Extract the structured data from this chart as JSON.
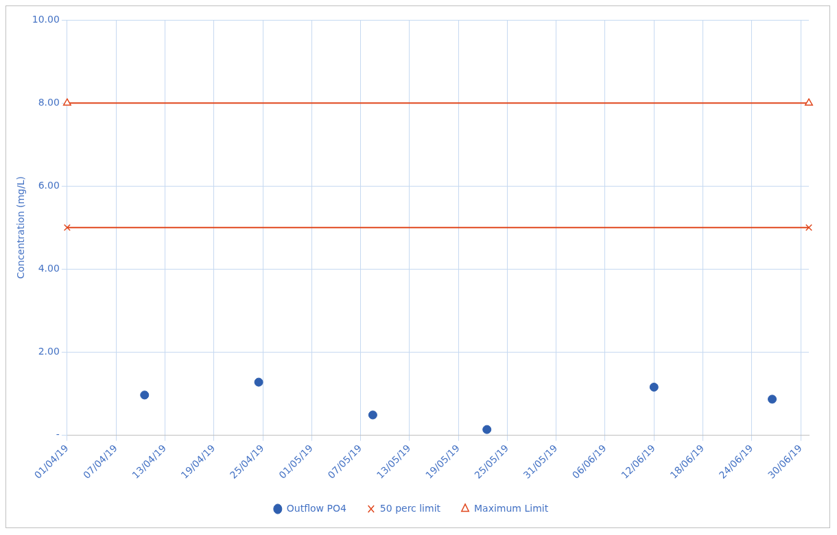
{
  "chart_data": {
    "type": "scatter",
    "ylabel": "Concentration (mg/L)",
    "xlim": [
      "--04-01",
      "--07-01"
    ],
    "xticks": [
      {
        "value": "--04-01",
        "label": "01/04/19"
      },
      {
        "value": "--04-07",
        "label": "07/04/19"
      },
      {
        "value": "--04-13",
        "label": "13/04/19"
      },
      {
        "value": "--04-19",
        "label": "19/04/19"
      },
      {
        "value": "--04-25",
        "label": "25/04/19"
      },
      {
        "value": "--05-01",
        "label": "01/05/19"
      },
      {
        "value": "--05-07",
        "label": "07/05/19"
      },
      {
        "value": "--05-13",
        "label": "13/05/19"
      },
      {
        "value": "--05-19",
        "label": "19/05/19"
      },
      {
        "value": "--05-25",
        "label": "25/05/19"
      },
      {
        "value": "--05-31",
        "label": "31/05/19"
      },
      {
        "value": "--06-06",
        "label": "06/06/19"
      },
      {
        "value": "--06-12",
        "label": "12/06/19"
      },
      {
        "value": "--06-18",
        "label": "18/06/19"
      },
      {
        "value": "--06-24",
        "label": "24/06/19"
      },
      {
        "value": "--06-30",
        "label": "30/06/19"
      }
    ],
    "ylim": [
      0,
      10
    ],
    "yticks": [
      {
        "value": 0,
        "label": "-"
      },
      {
        "value": 2,
        "label": "2.00"
      },
      {
        "value": 4,
        "label": "4.00"
      },
      {
        "value": 6,
        "label": "6.00"
      },
      {
        "value": 8,
        "label": "8.00"
      },
      {
        "value": 10,
        "label": "10.00"
      }
    ],
    "grid": true,
    "legend": "bottom",
    "series": [
      {
        "name": "Outflow PO4",
        "color": "#2f5faf",
        "marker": "circle",
        "x": [
          "--04-10T12:00",
          "--04-24T12:00",
          "--05-08T12:00",
          "--05-22T12:00",
          "--06-12",
          "--06-26T12:00"
        ],
        "values": [
          0.97,
          1.28,
          0.49,
          0.14,
          1.16,
          0.87
        ]
      },
      {
        "name": "50 perc limit",
        "type": "line",
        "color": "#e0461c",
        "marker": "cross",
        "x": [
          "--04-01",
          "--07-01"
        ],
        "values": [
          5,
          5
        ]
      },
      {
        "name": "Maximum Limit",
        "type": "line",
        "color": "#e0461c",
        "marker": "triangle",
        "x": [
          "--04-01",
          "--07-01"
        ],
        "values": [
          8,
          8
        ]
      }
    ]
  }
}
